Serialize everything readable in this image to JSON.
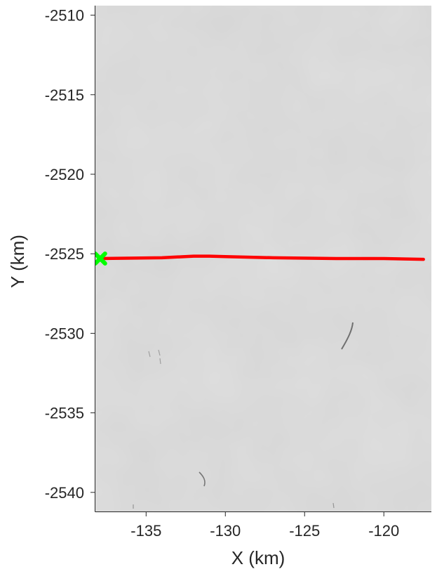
{
  "chart_data": {
    "type": "line",
    "xlabel": "X (km)",
    "ylabel": "Y (km)",
    "xlim": [
      -138.2,
      -117.0
    ],
    "ylim": [
      -2541.2,
      -2509.4
    ],
    "x_ticks": [
      -135,
      -130,
      -125,
      -120
    ],
    "x_tick_labels": [
      "-135",
      "-130",
      "-125",
      "-120"
    ],
    "y_ticks": [
      -2510,
      -2515,
      -2520,
      -2525,
      -2530,
      -2535,
      -2540
    ],
    "y_tick_labels": [
      "-2510",
      "-2515",
      "-2520",
      "-2525",
      "-2530",
      "-2535",
      "-2540"
    ],
    "grid": false,
    "background": "grayscale satellite image",
    "series": [
      {
        "color": "#ff0000",
        "x": [
          -138.0,
          -134.0,
          -132.0,
          -131.0,
          -130.0,
          -127.0,
          -123.0,
          -120.0,
          -117.5
        ],
        "y": [
          -2525.3,
          -2525.25,
          -2525.15,
          -2525.15,
          -2525.18,
          -2525.25,
          -2525.3,
          -2525.3,
          -2525.35
        ]
      }
    ],
    "markers": [
      {
        "shape": "x",
        "color": "#00ff00",
        "x": -137.9,
        "y": -2525.3
      }
    ]
  }
}
